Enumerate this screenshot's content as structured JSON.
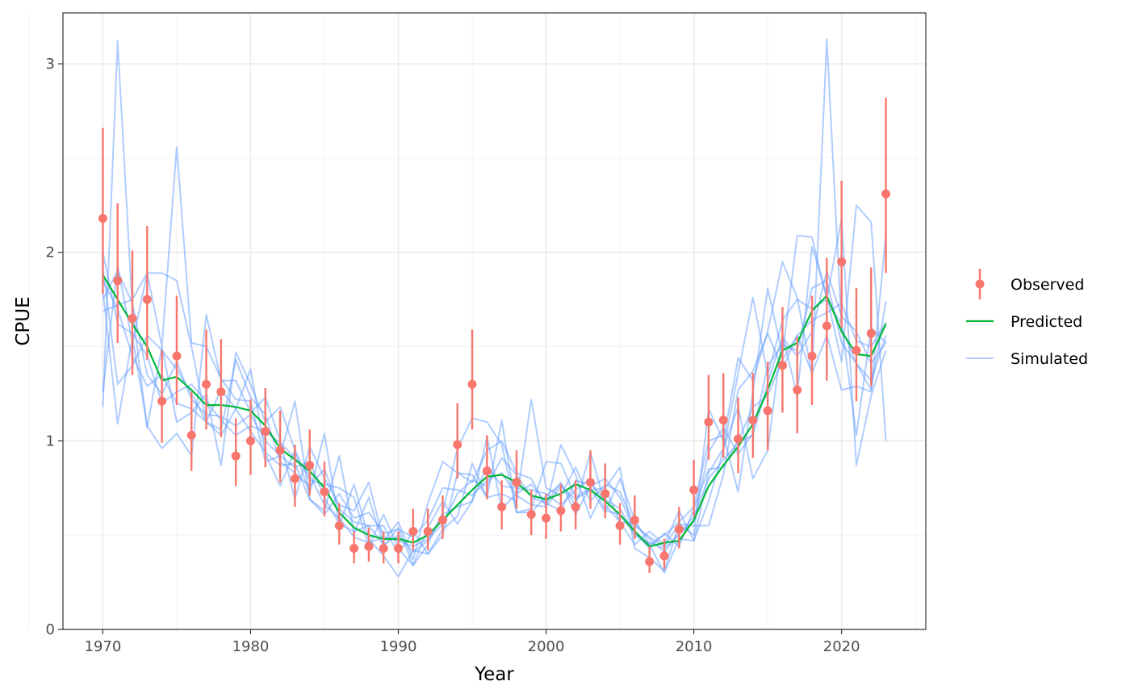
{
  "chart_data": {
    "type": "line",
    "title": "",
    "xlabel": "Year",
    "ylabel": "CPUE",
    "xlim": [
      1967.3,
      2025.7
    ],
    "ylim": [
      0,
      3.27
    ],
    "x_ticks": [
      1970,
      1980,
      1990,
      2000,
      2010,
      2020
    ],
    "y_ticks": [
      0,
      1,
      2,
      3
    ],
    "grid": true,
    "legend_position": "right",
    "colors": {
      "observed": "#F8766D",
      "predicted": "#00BA38",
      "simulated": "#619CFF",
      "panel_border": "#333333",
      "grid_major": "#ebebeb",
      "grid_minor": "#f2f2f2",
      "tick_label": "#4d4d4d"
    },
    "legend": [
      {
        "key": "observed",
        "label": "Observed"
      },
      {
        "key": "predicted",
        "label": "Predicted"
      },
      {
        "key": "simulated",
        "label": "Simulated"
      }
    ],
    "years": [
      1970,
      1971,
      1972,
      1973,
      1974,
      1975,
      1976,
      1977,
      1978,
      1979,
      1980,
      1981,
      1982,
      1983,
      1984,
      1985,
      1986,
      1987,
      1988,
      1989,
      1990,
      1991,
      1992,
      1993,
      1994,
      1995,
      1996,
      1997,
      1998,
      1999,
      2000,
      2001,
      2002,
      2003,
      2004,
      2005,
      2006,
      2007,
      2008,
      2009,
      2010,
      2011,
      2012,
      2013,
      2014,
      2015,
      2016,
      2017,
      2018,
      2019,
      2020,
      2021,
      2022,
      2023
    ],
    "observed": {
      "values": [
        2.18,
        1.85,
        1.65,
        1.75,
        1.21,
        1.45,
        1.03,
        1.3,
        1.26,
        0.92,
        1.0,
        1.05,
        0.95,
        0.8,
        0.87,
        0.73,
        0.55,
        0.43,
        0.44,
        0.43,
        0.43,
        0.52,
        0.52,
        0.58,
        0.98,
        1.3,
        0.84,
        0.65,
        0.78,
        0.61,
        0.59,
        0.63,
        0.65,
        0.78,
        0.72,
        0.55,
        0.58,
        0.36,
        0.39,
        0.53,
        0.74,
        1.1,
        1.11,
        1.01,
        1.11,
        1.16,
        1.4,
        1.27,
        1.45,
        1.61,
        1.95,
        1.48,
        1.57,
        2.31
      ],
      "lower": [
        1.78,
        1.52,
        1.35,
        1.43,
        0.99,
        1.19,
        0.84,
        1.06,
        1.02,
        0.76,
        0.82,
        0.86,
        0.78,
        0.65,
        0.71,
        0.6,
        0.45,
        0.35,
        0.36,
        0.35,
        0.35,
        0.42,
        0.42,
        0.48,
        0.8,
        1.06,
        0.69,
        0.53,
        0.64,
        0.5,
        0.48,
        0.52,
        0.53,
        0.64,
        0.59,
        0.45,
        0.48,
        0.3,
        0.32,
        0.43,
        0.6,
        0.9,
        0.91,
        0.83,
        0.91,
        0.95,
        1.15,
        1.04,
        1.19,
        1.32,
        1.6,
        1.21,
        1.29,
        1.89
      ],
      "upper": [
        2.66,
        2.26,
        2.01,
        2.14,
        1.48,
        1.77,
        1.26,
        1.59,
        1.54,
        1.12,
        1.22,
        1.28,
        1.16,
        0.98,
        1.06,
        0.89,
        0.67,
        0.52,
        0.54,
        0.52,
        0.52,
        0.64,
        0.64,
        0.71,
        1.2,
        1.59,
        1.03,
        0.79,
        0.95,
        0.74,
        0.72,
        0.77,
        0.79,
        0.95,
        0.88,
        0.67,
        0.71,
        0.44,
        0.48,
        0.65,
        0.9,
        1.35,
        1.36,
        1.23,
        1.36,
        1.42,
        1.71,
        1.55,
        1.77,
        1.97,
        2.38,
        1.81,
        1.92,
        2.82
      ]
    },
    "predicted": [
      1.88,
      1.75,
      1.62,
      1.5,
      1.32,
      1.34,
      1.27,
      1.19,
      1.19,
      1.18,
      1.16,
      1.08,
      0.96,
      0.9,
      0.84,
      0.75,
      0.62,
      0.54,
      0.5,
      0.48,
      0.48,
      0.46,
      0.5,
      0.58,
      0.66,
      0.74,
      0.81,
      0.82,
      0.78,
      0.71,
      0.69,
      0.72,
      0.77,
      0.74,
      0.68,
      0.61,
      0.52,
      0.44,
      0.46,
      0.47,
      0.58,
      0.76,
      0.87,
      0.97,
      1.09,
      1.27,
      1.48,
      1.52,
      1.69,
      1.77,
      1.58,
      1.46,
      1.45,
      1.62
    ],
    "simulated": [
      [
        1.18,
        3.12,
        1.7,
        1.07,
        1.5,
        1.1,
        1.15,
        1.25,
        0.87,
        1.47,
        1.3,
        1.1,
        1.18,
        0.95,
        0.72,
        1.04,
        0.55,
        0.77,
        0.48,
        0.39,
        0.28,
        0.42,
        0.4,
        0.5,
        0.83,
        0.78,
        0.95,
        1.0,
        0.83,
        0.8,
        0.65,
        0.98,
        0.82,
        0.59,
        0.75,
        0.86,
        0.43,
        0.38,
        0.31,
        0.56,
        0.5,
        1.17,
        1.0,
        1.44,
        1.32,
        1.58,
        1.95,
        1.76,
        1.35,
        3.13,
        1.6,
        1.41,
        1.27,
        1.74
      ],
      [
        1.26,
        1.93,
        1.52,
        1.89,
        1.5,
        2.56,
        1.52,
        1.5,
        1.33,
        1.22,
        1.21,
        0.89,
        0.92,
        1.21,
        0.69,
        0.63,
        0.92,
        0.51,
        0.7,
        0.44,
        0.54,
        0.34,
        0.45,
        0.62,
        0.96,
        1.12,
        1.1,
        0.98,
        0.62,
        0.64,
        0.89,
        0.88,
        0.7,
        0.75,
        0.62,
        0.8,
        0.58,
        0.45,
        0.5,
        0.57,
        0.65,
        1.0,
        1.03,
        0.73,
        1.26,
        1.81,
        1.46,
        2.09,
        2.08,
        1.75,
        1.62,
        1.03,
        1.6,
        1.52
      ],
      [
        1.69,
        1.72,
        1.75,
        1.89,
        1.89,
        1.85,
        1.5,
        1.1,
        1.03,
        1.17,
        1.38,
        0.93,
        0.76,
        0.95,
        0.79,
        0.77,
        0.75,
        0.7,
        0.44,
        0.61,
        0.43,
        0.34,
        0.54,
        0.68,
        0.56,
        0.68,
        1.02,
        0.64,
        0.72,
        0.77,
        0.67,
        0.78,
        0.61,
        0.76,
        0.8,
        0.7,
        0.52,
        0.45,
        0.3,
        0.48,
        0.47,
        0.68,
        0.95,
        1.36,
        1.76,
        1.35,
        1.64,
        1.75,
        1.7,
        1.75,
        2.18,
        0.87,
        1.24,
        1.48
      ],
      [
        1.8,
        1.09,
        1.55,
        1.08,
        0.96,
        1.04,
        0.92,
        1.67,
        1.32,
        1.32,
        1.15,
        1.23,
        1.0,
        0.69,
        0.97,
        0.8,
        0.66,
        0.63,
        0.78,
        0.47,
        0.57,
        0.37,
        0.67,
        0.89,
        0.83,
        0.82,
        0.7,
        1.11,
        0.62,
        0.62,
        0.71,
        0.77,
        0.66,
        0.94,
        0.66,
        0.57,
        0.45,
        0.52,
        0.45,
        0.63,
        0.47,
        0.83,
        0.96,
        1.18,
        0.8,
        0.95,
        1.56,
        1.24,
        2.03,
        1.77,
        1.42,
        2.25,
        2.16,
        1.0
      ],
      [
        1.92,
        1.3,
        1.4,
        1.56,
        1.48,
        1.38,
        1.25,
        1.1,
        1.06,
        1.43,
        1.23,
        1.14,
        0.89,
        0.83,
        0.76,
        0.85,
        0.64,
        0.57,
        0.55,
        0.55,
        0.4,
        0.52,
        0.4,
        0.53,
        0.6,
        0.88,
        0.7,
        0.72,
        0.68,
        1.22,
        0.75,
        0.71,
        0.86,
        0.68,
        0.77,
        0.73,
        0.55,
        0.49,
        0.44,
        0.56,
        0.55,
        0.55,
        0.82,
        1.27,
        1.37,
        1.57,
        1.38,
        1.56,
        1.36,
        1.56,
        1.27,
        1.29,
        1.26,
        2.1
      ],
      [
        1.85,
        1.7,
        1.45,
        1.29,
        1.35,
        1.2,
        1.17,
        1.1,
        1.27,
        1.17,
        1.05,
        0.94,
        0.87,
        0.88,
        0.69,
        0.61,
        0.72,
        0.59,
        0.62,
        0.51,
        0.53,
        0.49,
        0.58,
        0.75,
        0.74,
        0.71,
        0.79,
        0.83,
        0.71,
        0.66,
        0.65,
        0.76,
        0.69,
        0.74,
        0.75,
        0.57,
        0.56,
        0.48,
        0.41,
        0.51,
        0.57,
        0.94,
        1.07,
        0.93,
        1.04,
        1.4,
        1.51,
        1.48,
        1.81,
        1.85,
        1.52,
        1.41,
        1.32,
        1.56
      ],
      [
        2.0,
        1.62,
        1.57,
        1.45,
        1.2,
        1.26,
        1.3,
        1.21,
        1.11,
        1.03,
        1.08,
        1.05,
        0.99,
        0.91,
        0.82,
        0.66,
        0.59,
        0.49,
        0.46,
        0.49,
        0.47,
        0.44,
        0.48,
        0.56,
        0.72,
        0.79,
        0.76,
        0.91,
        0.82,
        0.7,
        0.67,
        0.63,
        0.79,
        0.77,
        0.69,
        0.64,
        0.51,
        0.43,
        0.51,
        0.44,
        0.64,
        0.85,
        0.86,
        1.0,
        1.18,
        1.24,
        1.43,
        1.56,
        1.64,
        1.68,
        1.73,
        1.53,
        1.5,
        1.63
      ],
      [
        1.75,
        1.9,
        1.73,
        1.35,
        1.25,
        1.42,
        1.22,
        1.14,
        1.13,
        1.08,
        1.14,
        1.0,
        0.92,
        0.86,
        0.89,
        0.7,
        0.56,
        0.52,
        0.55,
        0.45,
        0.5,
        0.41,
        0.47,
        0.61,
        0.65,
        0.68,
        0.87,
        0.76,
        0.75,
        0.74,
        0.72,
        0.66,
        0.74,
        0.8,
        0.63,
        0.61,
        0.5,
        0.46,
        0.43,
        0.5,
        0.6,
        0.8,
        0.9,
        0.99,
        1.03,
        1.31,
        1.55,
        1.45,
        1.58,
        1.9,
        1.66,
        1.58,
        1.41,
        1.52
      ]
    ]
  }
}
